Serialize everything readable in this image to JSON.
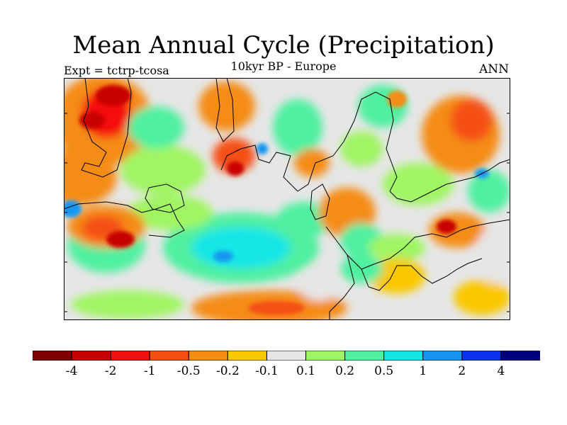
{
  "title": "Mean Annual Cycle (Precipitation)",
  "subtitle": "10kyr BP - Europe",
  "experiment": "Expt = tctrp-tcosa",
  "season": "ANN",
  "colors": {
    "land_outline": "#000000",
    "frame": "#000000"
  },
  "legend": {
    "colors": [
      "#7f0000",
      "#c80000",
      "#f51010",
      "#f55012",
      "#f58c12",
      "#fac800",
      "#e6e6e6",
      "#a0f564",
      "#50f0a0",
      "#14e6e6",
      "#1496f0",
      "#0a32f0",
      "#000080"
    ],
    "labels": [
      "-4",
      "-2",
      "-1",
      "-0.5",
      "-0.2",
      "-0.1",
      "0.1",
      "0.2",
      "0.5",
      "1",
      "2",
      "4"
    ]
  }
}
